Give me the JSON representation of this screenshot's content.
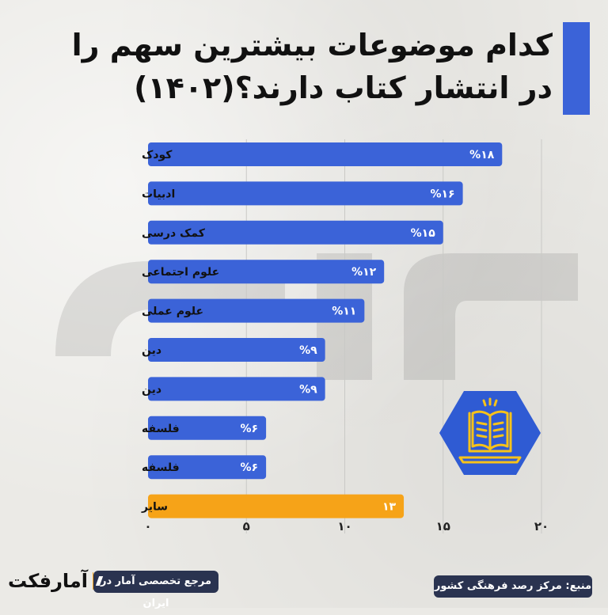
{
  "title": {
    "line1": "کدام موضوعات بیشترین سهم را",
    "line2": "در انتشار کتاب دارند؟(۱۴۰۲)"
  },
  "colors": {
    "bar": "#3b63d8",
    "bar_highlight": "#f6a318",
    "title_accent": "#3b63d8",
    "badge": "#2f5bd3",
    "badge_icon": "#f6c21a",
    "pill": "#2a3350"
  },
  "chart_data": {
    "type": "bar",
    "orientation": "horizontal",
    "categories": [
      "کودک",
      "ادبیات",
      "کمک درسی",
      "علوم اجتماعی",
      "علوم عملی",
      "دین",
      "دین",
      "فلسفه",
      "فلسفه",
      "سایر"
    ],
    "values": [
      18,
      16,
      15,
      12,
      11,
      9,
      9,
      6,
      6,
      13
    ],
    "value_labels": [
      "%۱۸",
      "%۱۶",
      "%۱۵",
      "%۱۲",
      "%۱۱",
      "%۹",
      "%۹",
      "%۶",
      "%۶",
      "۱۳"
    ],
    "highlight_index": 9,
    "x_ticks": [
      0,
      5,
      10,
      15,
      20
    ],
    "x_tick_labels": [
      "۰",
      "۵",
      "۱۰",
      "۱۵",
      "۲۰"
    ],
    "xlim": [
      0,
      20
    ],
    "grid": true
  },
  "badge": {
    "icon": "open-book-laptop-icon"
  },
  "footer": {
    "source": "منبع: مرکز رصد فرهنگی کشور",
    "tagline": "مرجع تخصصی آمار در ایران",
    "brand": "آمارفکت"
  }
}
